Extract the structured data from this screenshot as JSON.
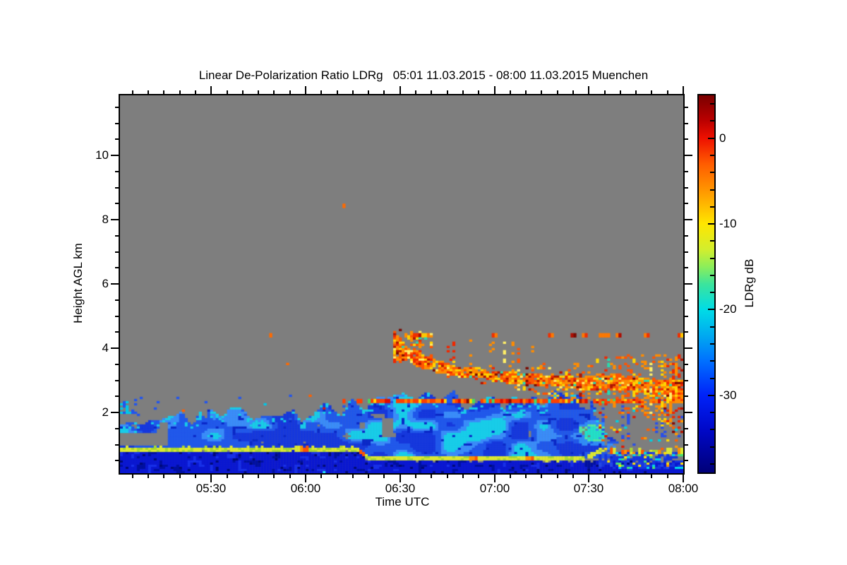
{
  "chart_data": {
    "type": "heatmap",
    "title": "Linear De-Polarization Ratio LDRg   05:01 11.03.2015 - 08:00 11.03.2015 Muenchen",
    "instrument_quantity": "Linear De-Polarization Ratio LDRg",
    "site": "Muenchen",
    "time_start": "05:01 11.03.2015",
    "time_end": "08:00 11.03.2015",
    "xlabel": "Time UTC",
    "ylabel": "Height AGL km",
    "x_total_min": 179,
    "x_major": [
      {
        "min": 29,
        "label": "05:30"
      },
      {
        "min": 59,
        "label": "06:00"
      },
      {
        "min": 89,
        "label": "06:30"
      },
      {
        "min": 119,
        "label": "07:00"
      },
      {
        "min": 149,
        "label": "07:30"
      },
      {
        "min": 179,
        "label": "08:00"
      }
    ],
    "x_minor_step_min": 5,
    "y_min": 0.11,
    "y_max": 11.87,
    "y_major": [
      2,
      4,
      6,
      8,
      10
    ],
    "y_minor_step": 0.5,
    "no_data_color": "#7e7e7e",
    "colorbar": {
      "title": "LDRg dB",
      "max": 5,
      "min": -39,
      "labels": [
        0,
        -10,
        -20,
        -30
      ],
      "tick_step": 2,
      "stops": [
        [
          5,
          "#7a0000"
        ],
        [
          2,
          "#bc0000"
        ],
        [
          0,
          "#ee1000"
        ],
        [
          -3,
          "#ff5c00"
        ],
        [
          -6,
          "#ff9400"
        ],
        [
          -10,
          "#ffe600"
        ],
        [
          -13,
          "#d2ee2e"
        ],
        [
          -15,
          "#8cee5a"
        ],
        [
          -17,
          "#3ce49c"
        ],
        [
          -20,
          "#00dce6"
        ],
        [
          -23,
          "#00aaf0"
        ],
        [
          -26,
          "#0070ff"
        ],
        [
          -30,
          "#0022f8"
        ],
        [
          -34,
          "#0008c8"
        ],
        [
          -39,
          "#000078"
        ]
      ]
    },
    "features": [
      {
        "name": "no-data-background",
        "type": "fill",
        "label": "no signal / no data",
        "color": "#7e7e7e"
      },
      {
        "name": "boundary-base-layer",
        "type": "layer",
        "label": "strong near-surface echo, LDR about -32 dB",
        "t": [
          0,
          179
        ],
        "top_km": [
          [
            0,
            0.8
          ],
          [
            75,
            0.8
          ],
          [
            79,
            0.5
          ],
          [
            152,
            0.48
          ],
          [
            179,
            0.46
          ]
        ],
        "bottom_km": 0.11,
        "colors": {
          "main": "#0b18d0",
          "dark": "#0010a0",
          "mid2": "#1730e8",
          "dot": "#000a78",
          "cyan": "#20e0f8"
        }
      },
      {
        "name": "low-level-cloud",
        "type": "cloud",
        "label": "boundary-layer cloud and precipitation echo, LDR -30 to -18 dB",
        "t": [
          0,
          162
        ],
        "top_km": [
          [
            0,
            1.9
          ],
          [
            8,
            1.8
          ],
          [
            14,
            1.95
          ],
          [
            20,
            1.78
          ],
          [
            26,
            1.92
          ],
          [
            32,
            1.8
          ],
          [
            38,
            1.95
          ],
          [
            44,
            1.82
          ],
          [
            50,
            1.75
          ],
          [
            55,
            1.95
          ],
          [
            58,
            1.7
          ],
          [
            62,
            2.05
          ],
          [
            66,
            2.45
          ],
          [
            70,
            2.15
          ],
          [
            74,
            2.5
          ],
          [
            78,
            2.25
          ],
          [
            82,
            2.6
          ],
          [
            86,
            2.35
          ],
          [
            90,
            2.6
          ],
          [
            94,
            2.3
          ],
          [
            98,
            2.55
          ],
          [
            102,
            2.25
          ],
          [
            106,
            2.5
          ],
          [
            110,
            2.2
          ],
          [
            114,
            2.45
          ],
          [
            118,
            2.6
          ],
          [
            122,
            2.35
          ],
          [
            126,
            2.55
          ],
          [
            130,
            2.4
          ],
          [
            134,
            2.25
          ],
          [
            138,
            2.45
          ],
          [
            142,
            2.3
          ],
          [
            146,
            2.5
          ],
          [
            150,
            2.35
          ],
          [
            153,
            1.7
          ],
          [
            157,
            1.1
          ],
          [
            162,
            0.75
          ]
        ],
        "bottom_km": [
          [
            0,
            0.93
          ],
          [
            75,
            0.93
          ],
          [
            79,
            0.65
          ],
          [
            150,
            0.6
          ],
          [
            162,
            0.6
          ]
        ],
        "turret_amp": 0.55,
        "holes": [
          {
            "t": [
              0,
              15
            ],
            "km": [
              1.0,
              1.35
            ]
          }
        ],
        "hole_noise": 0.12,
        "breakup_start": 151,
        "colors": {
          "cyan": "#18cce8",
          "light": "#3a8cf8",
          "mid": "#2158ea",
          "deep": "#1638dc",
          "dark": "#0a28c8",
          "green": "#90dc50"
        }
      },
      {
        "name": "yellow-green-layer",
        "type": "line-layer",
        "label": "bright thin layer, LDR about -10 dB",
        "half_km": 0.07,
        "km": [
          [
            0,
            0.86
          ],
          [
            75,
            0.86
          ],
          [
            79,
            0.58
          ],
          [
            148,
            0.55
          ],
          [
            152,
            0.8
          ],
          [
            179,
            0.8
          ]
        ],
        "dash_after": 148,
        "orange_blob_t": [
          59,
          77,
          112,
          130,
          155,
          161,
          167,
          172,
          177
        ],
        "colors": {
          "yellow": "#dce832",
          "green": "#a8d830",
          "orange": "#ff9000",
          "deep_orange": "#ff5400"
        }
      },
      {
        "name": "cyan-patch",
        "type": "patch",
        "t": [
          146,
          154
        ],
        "km": [
          0.95,
          1.7
        ],
        "p": 0.85,
        "palette": [
          [
            "#22e0c8",
            0.45
          ],
          [
            "#55e6a0",
            0.6
          ],
          [
            "#2f8cf8",
            0.85
          ],
          [
            "#1f55ea",
            1.0
          ]
        ]
      },
      {
        "name": "right-breakup-bottom",
        "type": "speckle-strip",
        "t": [
          152,
          179
        ],
        "km": [
          0.25,
          0.8
        ],
        "fill": "#1535e0",
        "fill_p": 0.5,
        "p": 0.3,
        "palette": [
          [
            "#00d8e8",
            0.3
          ],
          [
            "#48e070",
            0.45
          ],
          [
            "#ffe000",
            0.65
          ],
          [
            "#ff8c00",
            0.8
          ],
          [
            "#2248e8",
            1.0
          ]
        ]
      },
      {
        "name": "right-breakup-specks",
        "type": "speckle-rect",
        "t": [
          152,
          179
        ],
        "km": [
          0.85,
          2.24
        ],
        "p": 0.1,
        "streak_p": 0.22,
        "streak_cell_p": 0.33,
        "streak_km": [
          1.2,
          2.24
        ],
        "streak_color": "#2a50e8",
        "palette": [
          [
            "#ff6000",
            0.25
          ],
          [
            "#ff9800",
            0.45
          ],
          [
            "#e01800",
            0.58
          ],
          [
            "#00d0e0",
            0.72
          ],
          [
            "#2850e8",
            0.84
          ],
          [
            "#ffd800",
            0.92
          ],
          [
            "#8c0800",
            1.0
          ]
        ]
      },
      {
        "name": "dotted-line-2.3km",
        "type": "dotted-line",
        "label": "intermittent depolarizing line at 2.3 km",
        "km": [
          2.26,
          2.4
        ],
        "t": [
          71,
          179
        ],
        "density": [
          [
            71,
            0.5
          ],
          [
            95,
            0.8
          ],
          [
            179,
            0.9
          ]
        ],
        "palette": [
          [
            "#ff4000",
            0.45
          ],
          [
            "#ff8000",
            0.65
          ],
          [
            "#e00c00",
            0.77
          ],
          [
            "#ffd800",
            0.85
          ],
          [
            "#00d8d8",
            0.91
          ],
          [
            "#48d860",
            0.95
          ],
          [
            "#8c0800",
            1.0
          ]
        ]
      },
      {
        "name": "melting-layer-band",
        "type": "band",
        "label": "descending depolarizing band, LDR -8 to 0 dB",
        "center": [
          [
            87,
            4.3
          ],
          [
            89,
            4.05
          ],
          [
            91,
            3.85
          ],
          [
            94,
            3.65
          ],
          [
            98,
            3.5
          ],
          [
            103,
            3.38
          ],
          [
            108,
            3.28
          ],
          [
            114,
            3.2
          ],
          [
            120,
            3.12
          ],
          [
            126,
            3.06
          ],
          [
            132,
            3.02
          ],
          [
            138,
            2.98
          ],
          [
            144,
            2.95
          ],
          [
            150,
            2.92
          ],
          [
            156,
            2.9
          ],
          [
            162,
            2.86
          ],
          [
            168,
            2.8
          ],
          [
            173,
            2.72
          ],
          [
            179,
            2.62
          ]
        ],
        "halfwidth": [
          [
            87,
            0.28
          ],
          [
            95,
            0.2
          ],
          [
            105,
            0.16
          ],
          [
            120,
            0.15
          ],
          [
            140,
            0.18
          ],
          [
            155,
            0.22
          ],
          [
            168,
            0.28
          ],
          [
            179,
            0.34
          ]
        ],
        "halo": [
          [
            87,
            0.05
          ],
          [
            110,
            0.15
          ],
          [
            130,
            0.25
          ],
          [
            150,
            0.45
          ],
          [
            165,
            0.7
          ],
          [
            179,
            0.95
          ]
        ],
        "halo_p": [
          [
            87,
            0.08
          ],
          [
            120,
            0.12
          ],
          [
            150,
            0.22
          ],
          [
            179,
            0.3
          ]
        ],
        "density": 0.93,
        "plumes": [
          {
            "t": [
              86.5,
              89.5
            ],
            "km": [
              3.55,
              4.4
            ],
            "p": 0.7
          },
          {
            "t": [
              92.5,
              96
            ],
            "km": [
              3.6,
              4.55
            ],
            "p": 0.6
          },
          {
            "t": [
              96,
              99
            ],
            "km": [
              4.1,
              4.5
            ],
            "p": 0.25
          }
        ],
        "hook": {
          "t": [
            89,
            94
          ],
          "km0": 4.55,
          "slope": -0.06,
          "half": 0.09,
          "p": 0.5
        },
        "wisps": {
          "t": [
            98,
            132
          ],
          "top_km": 4.3,
          "col_p": 0.28,
          "cell_p": 0.22
        },
        "palette": [
          [
            "#ff8c00",
            0.32
          ],
          [
            "#ff5400",
            0.54
          ],
          [
            "#ffd400",
            0.7
          ],
          [
            "#f02800",
            0.82
          ],
          [
            "#ffee66",
            0.88
          ],
          [
            "#b01400",
            0.94
          ],
          [
            "#7c0a00",
            0.97
          ],
          [
            "#28d8b0",
            1.0
          ]
        ]
      },
      {
        "name": "speckle-row-4.4km",
        "type": "speckle-row",
        "km": [
          4.36,
          4.5
        ],
        "segments": [
          {
            "t": [
              52,
              87
            ],
            "p": 0.07
          },
          {
            "t": [
              87,
              179
            ],
            "p": 0.2
          }
        ],
        "palette": [
          [
            "#f03000",
            0.4
          ],
          [
            "#ff7800",
            0.7
          ],
          [
            "#b00c00",
            0.85
          ],
          [
            "#ffc800",
            0.95
          ],
          [
            "#7c0800",
            1.0
          ]
        ]
      },
      {
        "name": "left-edge-specks",
        "type": "speckle-rect",
        "t": [
          0,
          7
        ],
        "km": [
          1.9,
          2.5
        ],
        "p": 0.3,
        "palette": [
          [
            "#2255ee",
            0.5
          ],
          [
            "#00c8e8",
            0.8
          ],
          [
            "#1a3ae0",
            1.0
          ]
        ]
      },
      {
        "name": "cloud-top-strays",
        "type": "speckle-rect",
        "t": [
          7,
          80
        ],
        "km": [
          1.95,
          2.55
        ],
        "p": 0.02,
        "palette": [
          [
            "#2255ee",
            0.55
          ],
          [
            "#00c8e8",
            0.75
          ],
          [
            "#ff6000",
            0.9
          ],
          [
            "#e01800",
            1.0
          ]
        ]
      },
      {
        "name": "isolated-dots",
        "type": "dots",
        "color": "#ff6a00",
        "points": [
          {
            "t": 71,
            "km": 8.45
          },
          {
            "t": 53,
            "km": 3.52
          },
          {
            "t": 48,
            "km": 4.4
          }
        ]
      }
    ]
  }
}
